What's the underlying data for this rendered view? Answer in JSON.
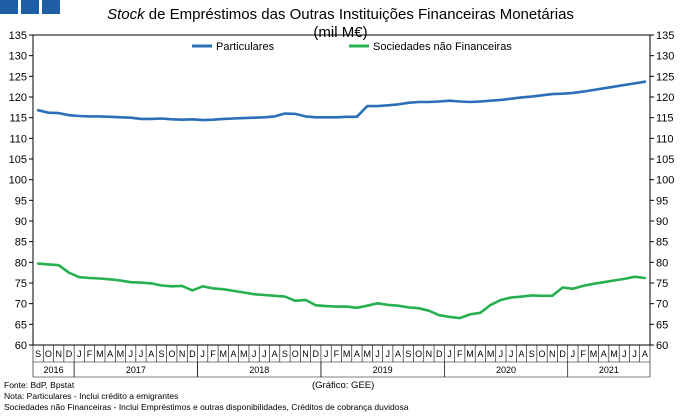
{
  "header": {
    "squares": [
      "square",
      "square",
      "square"
    ],
    "accent_color": "#1f5fa8"
  },
  "title_italic": "Stock",
  "title_rest": " de Empréstimos das Outras Instituições Financeiras Monetárias",
  "subtitle": "(mil M€)",
  "footer": {
    "source": "Fonte: BdP, Bpstat",
    "note1": "Nota: Particulares - Inclui crédito a emigrantes",
    "note2": "Sociedades não Financeiras - Inclui Empréstimos e outras disponibilidades, Créditos de cobrança duvidosa",
    "credit": "(Gráfico: GEE)"
  },
  "chart_data": {
    "type": "line",
    "title": "Stock de Empréstimos das Outras Instituições Financeiras Monetárias",
    "subtitle": "(mil M€)",
    "ylim": [
      60,
      135
    ],
    "yticks": [
      60,
      65,
      70,
      75,
      80,
      85,
      90,
      95,
      100,
      105,
      110,
      115,
      120,
      125,
      130,
      135
    ],
    "y_axis_both_sides": true,
    "grid": false,
    "legend_position": "top-center",
    "x_tick_labels": [
      "S",
      "O",
      "N",
      "D",
      "J",
      "F",
      "M",
      "A",
      "M",
      "J",
      "J",
      "A",
      "S",
      "O",
      "N",
      "D",
      "J",
      "F",
      "M",
      "A",
      "M",
      "J",
      "J",
      "A",
      "S",
      "O",
      "N",
      "D",
      "J",
      "F",
      "M",
      "A",
      "M",
      "J",
      "J",
      "A",
      "S",
      "O",
      "N",
      "D",
      "J",
      "F",
      "M",
      "A",
      "M",
      "J",
      "J",
      "A",
      "S",
      "O",
      "N",
      "D",
      "J",
      "F",
      "M",
      "A",
      "M",
      "J",
      "J",
      "A"
    ],
    "x_year_labels": [
      {
        "label": "2016",
        "start": 0,
        "end": 3
      },
      {
        "label": "2017",
        "start": 4,
        "end": 15
      },
      {
        "label": "2018",
        "start": 16,
        "end": 27
      },
      {
        "label": "2019",
        "start": 28,
        "end": 39
      },
      {
        "label": "2020",
        "start": 40,
        "end": 51
      },
      {
        "label": "2021",
        "start": 52,
        "end": 59
      }
    ],
    "series": [
      {
        "name": "Particulares",
        "color": "#2a6fb8",
        "values": [
          116.8,
          116.2,
          116.1,
          115.6,
          115.4,
          115.3,
          115.3,
          115.2,
          115.1,
          115.0,
          114.7,
          114.7,
          114.8,
          114.6,
          114.5,
          114.6,
          114.4,
          114.5,
          114.7,
          114.8,
          114.9,
          115.0,
          115.1,
          115.3,
          116.0,
          115.9,
          115.3,
          115.1,
          115.1,
          115.1,
          115.2,
          115.2,
          117.8,
          117.8,
          118.0,
          118.2,
          118.6,
          118.8,
          118.8,
          118.9,
          119.1,
          118.9,
          118.8,
          118.9,
          119.1,
          119.3,
          119.6,
          119.9,
          120.1,
          120.4,
          120.7,
          120.8,
          121.0,
          121.3,
          121.7,
          122.1,
          122.5,
          122.9,
          123.3,
          123.7
        ]
      },
      {
        "name": "Sociedades não Financeiras",
        "color": "#26b04e",
        "values": [
          79.7,
          79.5,
          79.3,
          77.5,
          76.4,
          76.2,
          76.1,
          75.9,
          75.6,
          75.2,
          75.1,
          74.9,
          74.4,
          74.2,
          74.3,
          73.2,
          74.2,
          73.7,
          73.5,
          73.1,
          72.7,
          72.3,
          72.1,
          71.9,
          71.7,
          70.7,
          70.9,
          69.6,
          69.4,
          69.3,
          69.3,
          69.0,
          69.5,
          70.1,
          69.7,
          69.5,
          69.1,
          68.9,
          68.3,
          67.2,
          66.8,
          66.5,
          67.4,
          67.8,
          69.7,
          70.9,
          71.5,
          71.7,
          72.0,
          71.9,
          71.9,
          73.9,
          73.6,
          74.3,
          74.8,
          75.2,
          75.6,
          76.0,
          76.5,
          76.2
        ]
      }
    ]
  }
}
